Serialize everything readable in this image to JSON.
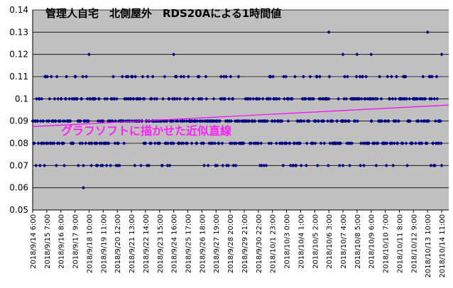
{
  "chart_data": {
    "type": "scatter",
    "title": "管理人自宅　北側屋外　RDS20Aによる1時間値",
    "annotation": "グラフソフトに描かせた近似直線",
    "ylim": [
      0.05,
      0.14
    ],
    "yticks": [
      "0.05",
      "0.06",
      "0.07",
      "0.08",
      "0.09",
      "0.1",
      "0.11",
      "0.12",
      "0.13",
      "0.14"
    ],
    "xticks": [
      "2018/9/14 6:00",
      "2018/9/15 7:00",
      "2018/9/16 8:00",
      "2018/9/17 9:00",
      "2018/9/18 10:00",
      "2018/9/19 11:00",
      "2018/9/20 12:00",
      "2018/9/21 13:00",
      "2018/9/22 14:00",
      "2018/9/23 15:00",
      "2018/9/24 16:00",
      "2018/9/25 17:00",
      "2018/9/26 18:00",
      "2018/9/27 19:00",
      "2018/9/28 20:00",
      "2018/9/29 21:00",
      "2018/9/30 22:00",
      "2018/10/1 23:00",
      "2018/10/3 0:00",
      "2018/10/4 1:00",
      "2018/10/5 2:00",
      "2018/10/6 3:00",
      "2018/10/7 4:00",
      "2018/10/8 5:00",
      "2018/10/9 6:00",
      "2018/10/10 7:00",
      "2018/10/11 8:00",
      "2018/10/12 9:00",
      "2018/10/13 10:00",
      "2018/10/14 11:00"
    ],
    "trendline": {
      "start": 0.0875,
      "end": 0.0972
    },
    "grid": true,
    "series": [
      {
        "color": "#000080",
        "sparse_points": [
          {
            "x": "2018/9/18 10:00",
            "y": 0.12
          },
          {
            "x": "2018/9/18 6:00",
            "y": 0.06
          },
          {
            "x": "2018/9/24 16:00",
            "y": 0.12
          },
          {
            "x": "2018/10/6 3:00",
            "y": 0.13
          },
          {
            "x": "2018/10/7 4:00",
            "y": 0.12
          },
          {
            "x": "2018/10/8 5:00",
            "y": 0.12
          },
          {
            "x": "2018/10/9 6:00",
            "y": 0.12
          },
          {
            "x": "2018/10/13 10:00",
            "y": 0.13
          },
          {
            "x": "2018/10/14 11:00",
            "y": 0.12
          }
        ]
      }
    ]
  }
}
